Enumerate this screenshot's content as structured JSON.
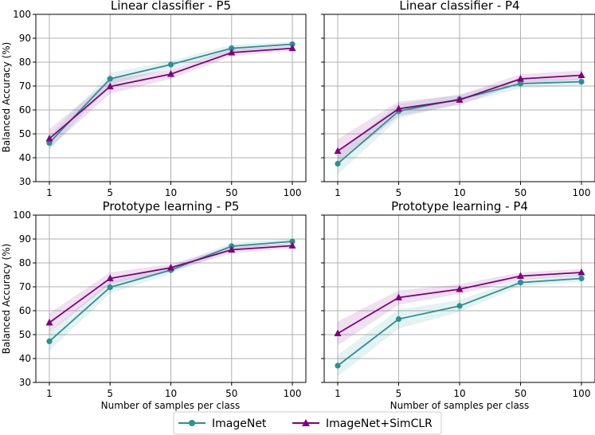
{
  "legend": {
    "location": "bottom-center",
    "entries": [
      {
        "label": "ImageNet",
        "marker": "circle",
        "color": "#2a9191"
      },
      {
        "label": "ImageNet+SimCLR",
        "marker": "triangle",
        "color": "#800080"
      }
    ]
  },
  "shared_axes": {
    "ylabel": "Balanced Accuracy (%)",
    "xlabel": "Number of samples per class",
    "xticks": [
      "1",
      "5",
      "10",
      "50",
      "100"
    ],
    "yticks": [
      30,
      40,
      50,
      60,
      70,
      80,
      90,
      100
    ],
    "ylim": [
      30,
      100
    ]
  },
  "chart_data": [
    {
      "type": "line",
      "title": "Linear classifier - P5",
      "categories": [
        "1",
        "5",
        "10",
        "50",
        "100"
      ],
      "series": [
        {
          "name": "ImageNet",
          "values": [
            46.2,
            73.0,
            79.0,
            85.8,
            87.5
          ],
          "band": [
            3.0,
            2.5,
            1.5,
            1.5,
            1.0
          ]
        },
        {
          "name": "ImageNet+SimCLR",
          "values": [
            48.0,
            69.8,
            75.0,
            84.0,
            85.8
          ],
          "band": [
            4.0,
            3.0,
            2.0,
            1.5,
            1.0
          ]
        }
      ]
    },
    {
      "type": "line",
      "title": "Linear classifier - P4",
      "categories": [
        "1",
        "5",
        "10",
        "50",
        "100"
      ],
      "series": [
        {
          "name": "ImageNet",
          "values": [
            37.5,
            59.5,
            64.5,
            71.0,
            71.8
          ],
          "band": [
            4.5,
            3.0,
            2.0,
            2.0,
            1.5
          ]
        },
        {
          "name": "ImageNet+SimCLR",
          "values": [
            42.8,
            60.5,
            64.2,
            73.0,
            74.5
          ],
          "band": [
            5.0,
            3.0,
            2.0,
            2.0,
            2.0
          ]
        }
      ]
    },
    {
      "type": "line",
      "title": "Prototype learning - P5",
      "categories": [
        "1",
        "5",
        "10",
        "50",
        "100"
      ],
      "series": [
        {
          "name": "ImageNet",
          "values": [
            47.2,
            69.8,
            77.0,
            87.0,
            89.0
          ],
          "band": [
            4.0,
            2.5,
            1.5,
            1.5,
            1.0
          ]
        },
        {
          "name": "ImageNet+SimCLR",
          "values": [
            55.0,
            73.5,
            78.0,
            85.5,
            87.2
          ],
          "band": [
            4.0,
            2.5,
            1.5,
            1.5,
            1.0
          ]
        }
      ]
    },
    {
      "type": "line",
      "title": "Prototype learning - P4",
      "categories": [
        "1",
        "5",
        "10",
        "50",
        "100"
      ],
      "series": [
        {
          "name": "ImageNet",
          "values": [
            37.0,
            56.5,
            62.0,
            71.8,
            73.5
          ],
          "band": [
            4.5,
            4.0,
            2.5,
            1.5,
            1.5
          ]
        },
        {
          "name": "ImageNet+SimCLR",
          "values": [
            50.5,
            65.5,
            69.0,
            74.5,
            76.0
          ],
          "band": [
            5.0,
            3.0,
            2.0,
            1.5,
            1.5
          ]
        }
      ]
    }
  ]
}
